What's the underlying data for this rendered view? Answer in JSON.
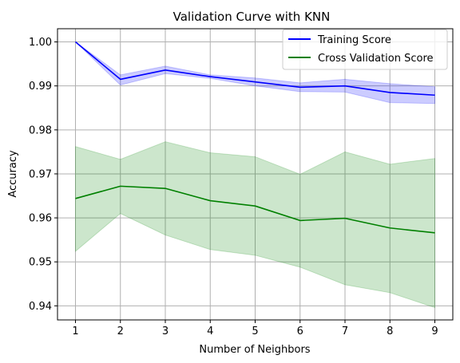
{
  "chart_data": {
    "type": "line",
    "title": "Validation Curve with KNN",
    "xlabel": "Number of Neighbors",
    "ylabel": "Accuracy",
    "x": [
      1,
      2,
      3,
      4,
      5,
      6,
      7,
      8,
      9
    ],
    "xlim": [
      0.6,
      9.4
    ],
    "ylim": [
      0.9368,
      1.003
    ],
    "xticks": [
      1,
      2,
      3,
      4,
      5,
      6,
      7,
      8,
      9
    ],
    "yticks": [
      0.94,
      0.95,
      0.96,
      0.97,
      0.98,
      0.99,
      1.0
    ],
    "ytick_labels": [
      "0.94",
      "0.95",
      "0.96",
      "0.97",
      "0.98",
      "0.99",
      "1.00"
    ],
    "grid": true,
    "legend_position": "top-right",
    "series": [
      {
        "name": "Training Score",
        "color": "#0000ff",
        "values": [
          1.0,
          0.9915,
          0.9936,
          0.9921,
          0.9909,
          0.9897,
          0.99,
          0.9885,
          0.9879
        ],
        "band_upper": [
          1.0,
          0.9925,
          0.9945,
          0.9925,
          0.9918,
          0.9907,
          0.9915,
          0.9905,
          0.9898
        ],
        "band_lower": [
          1.0,
          0.9902,
          0.9928,
          0.9917,
          0.99,
          0.9887,
          0.9886,
          0.9862,
          0.986
        ]
      },
      {
        "name": "Cross Validation Score",
        "color": "#008000",
        "values": [
          0.9644,
          0.9672,
          0.9667,
          0.9639,
          0.9627,
          0.9594,
          0.9599,
          0.9577,
          0.9566
        ],
        "band_upper": [
          0.9762,
          0.9733,
          0.9773,
          0.9748,
          0.9739,
          0.9699,
          0.975,
          0.9722,
          0.9735
        ],
        "band_lower": [
          0.9524,
          0.961,
          0.9561,
          0.9528,
          0.9515,
          0.9488,
          0.9448,
          0.943,
          0.9396
        ]
      }
    ]
  }
}
